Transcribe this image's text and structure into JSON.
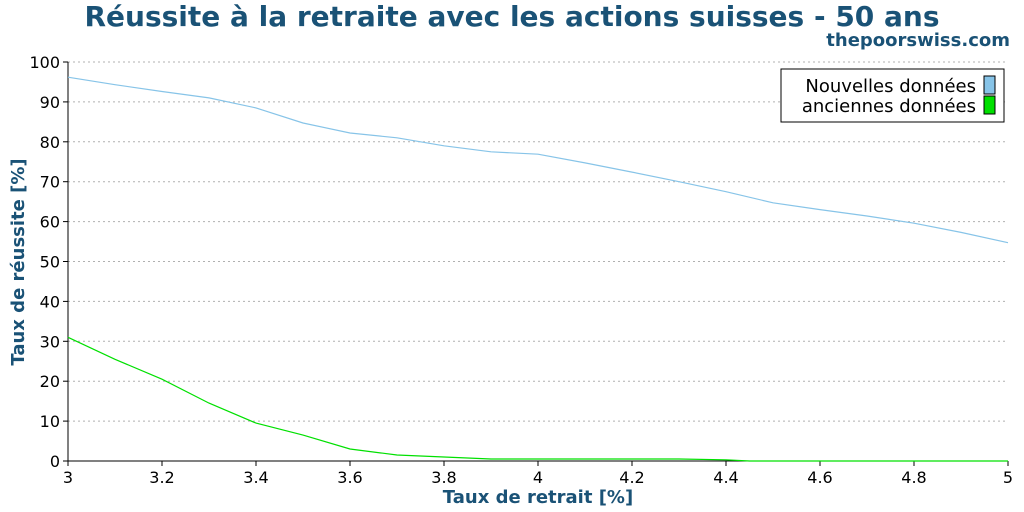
{
  "chart_data": {
    "type": "line",
    "title": "Réussite à la retraite avec les actions suisses - 50 ans",
    "watermark": "thepoorswiss.com",
    "xlabel": "Taux de retrait [%]",
    "ylabel": "Taux de réussite [%]",
    "xlim": [
      3,
      5
    ],
    "ylim": [
      0,
      100
    ],
    "x_ticks": [
      "3",
      "3.2",
      "3.4",
      "3.6",
      "3.8",
      "4",
      "4.2",
      "4.4",
      "4.6",
      "4.8",
      "5"
    ],
    "y_ticks": [
      "0",
      "10",
      "20",
      "30",
      "40",
      "50",
      "60",
      "70",
      "80",
      "90",
      "100"
    ],
    "grid": "horizontal-dotted",
    "legend_position": "top-right",
    "series": [
      {
        "name": "Nouvelles données",
        "color": "#87c4e8",
        "points": [
          [
            3.0,
            96.2
          ],
          [
            3.1,
            94.3
          ],
          [
            3.2,
            92.6
          ],
          [
            3.3,
            91.0
          ],
          [
            3.4,
            88.5
          ],
          [
            3.5,
            84.7
          ],
          [
            3.6,
            82.2
          ],
          [
            3.7,
            81.0
          ],
          [
            3.8,
            79.0
          ],
          [
            3.9,
            77.5
          ],
          [
            4.0,
            76.9
          ],
          [
            4.1,
            74.7
          ],
          [
            4.2,
            72.4
          ],
          [
            4.3,
            70.0
          ],
          [
            4.4,
            67.5
          ],
          [
            4.5,
            64.7
          ],
          [
            4.6,
            63.0
          ],
          [
            4.7,
            61.4
          ],
          [
            4.8,
            59.6
          ],
          [
            4.9,
            57.3
          ],
          [
            5.0,
            54.7
          ]
        ]
      },
      {
        "name": "anciennes données",
        "color": "#00e000",
        "points": [
          [
            3.0,
            31.0
          ],
          [
            3.1,
            25.5
          ],
          [
            3.2,
            20.5
          ],
          [
            3.3,
            14.5
          ],
          [
            3.4,
            9.5
          ],
          [
            3.5,
            6.5
          ],
          [
            3.6,
            3.0
          ],
          [
            3.7,
            1.5
          ],
          [
            3.8,
            1.0
          ],
          [
            3.9,
            0.5
          ],
          [
            4.0,
            0.5
          ],
          [
            4.1,
            0.5
          ],
          [
            4.2,
            0.5
          ],
          [
            4.3,
            0.5
          ],
          [
            4.4,
            0.3
          ],
          [
            4.45,
            0.0
          ],
          [
            4.6,
            0.0
          ],
          [
            4.8,
            0.0
          ],
          [
            5.0,
            0.0
          ]
        ]
      }
    ]
  }
}
